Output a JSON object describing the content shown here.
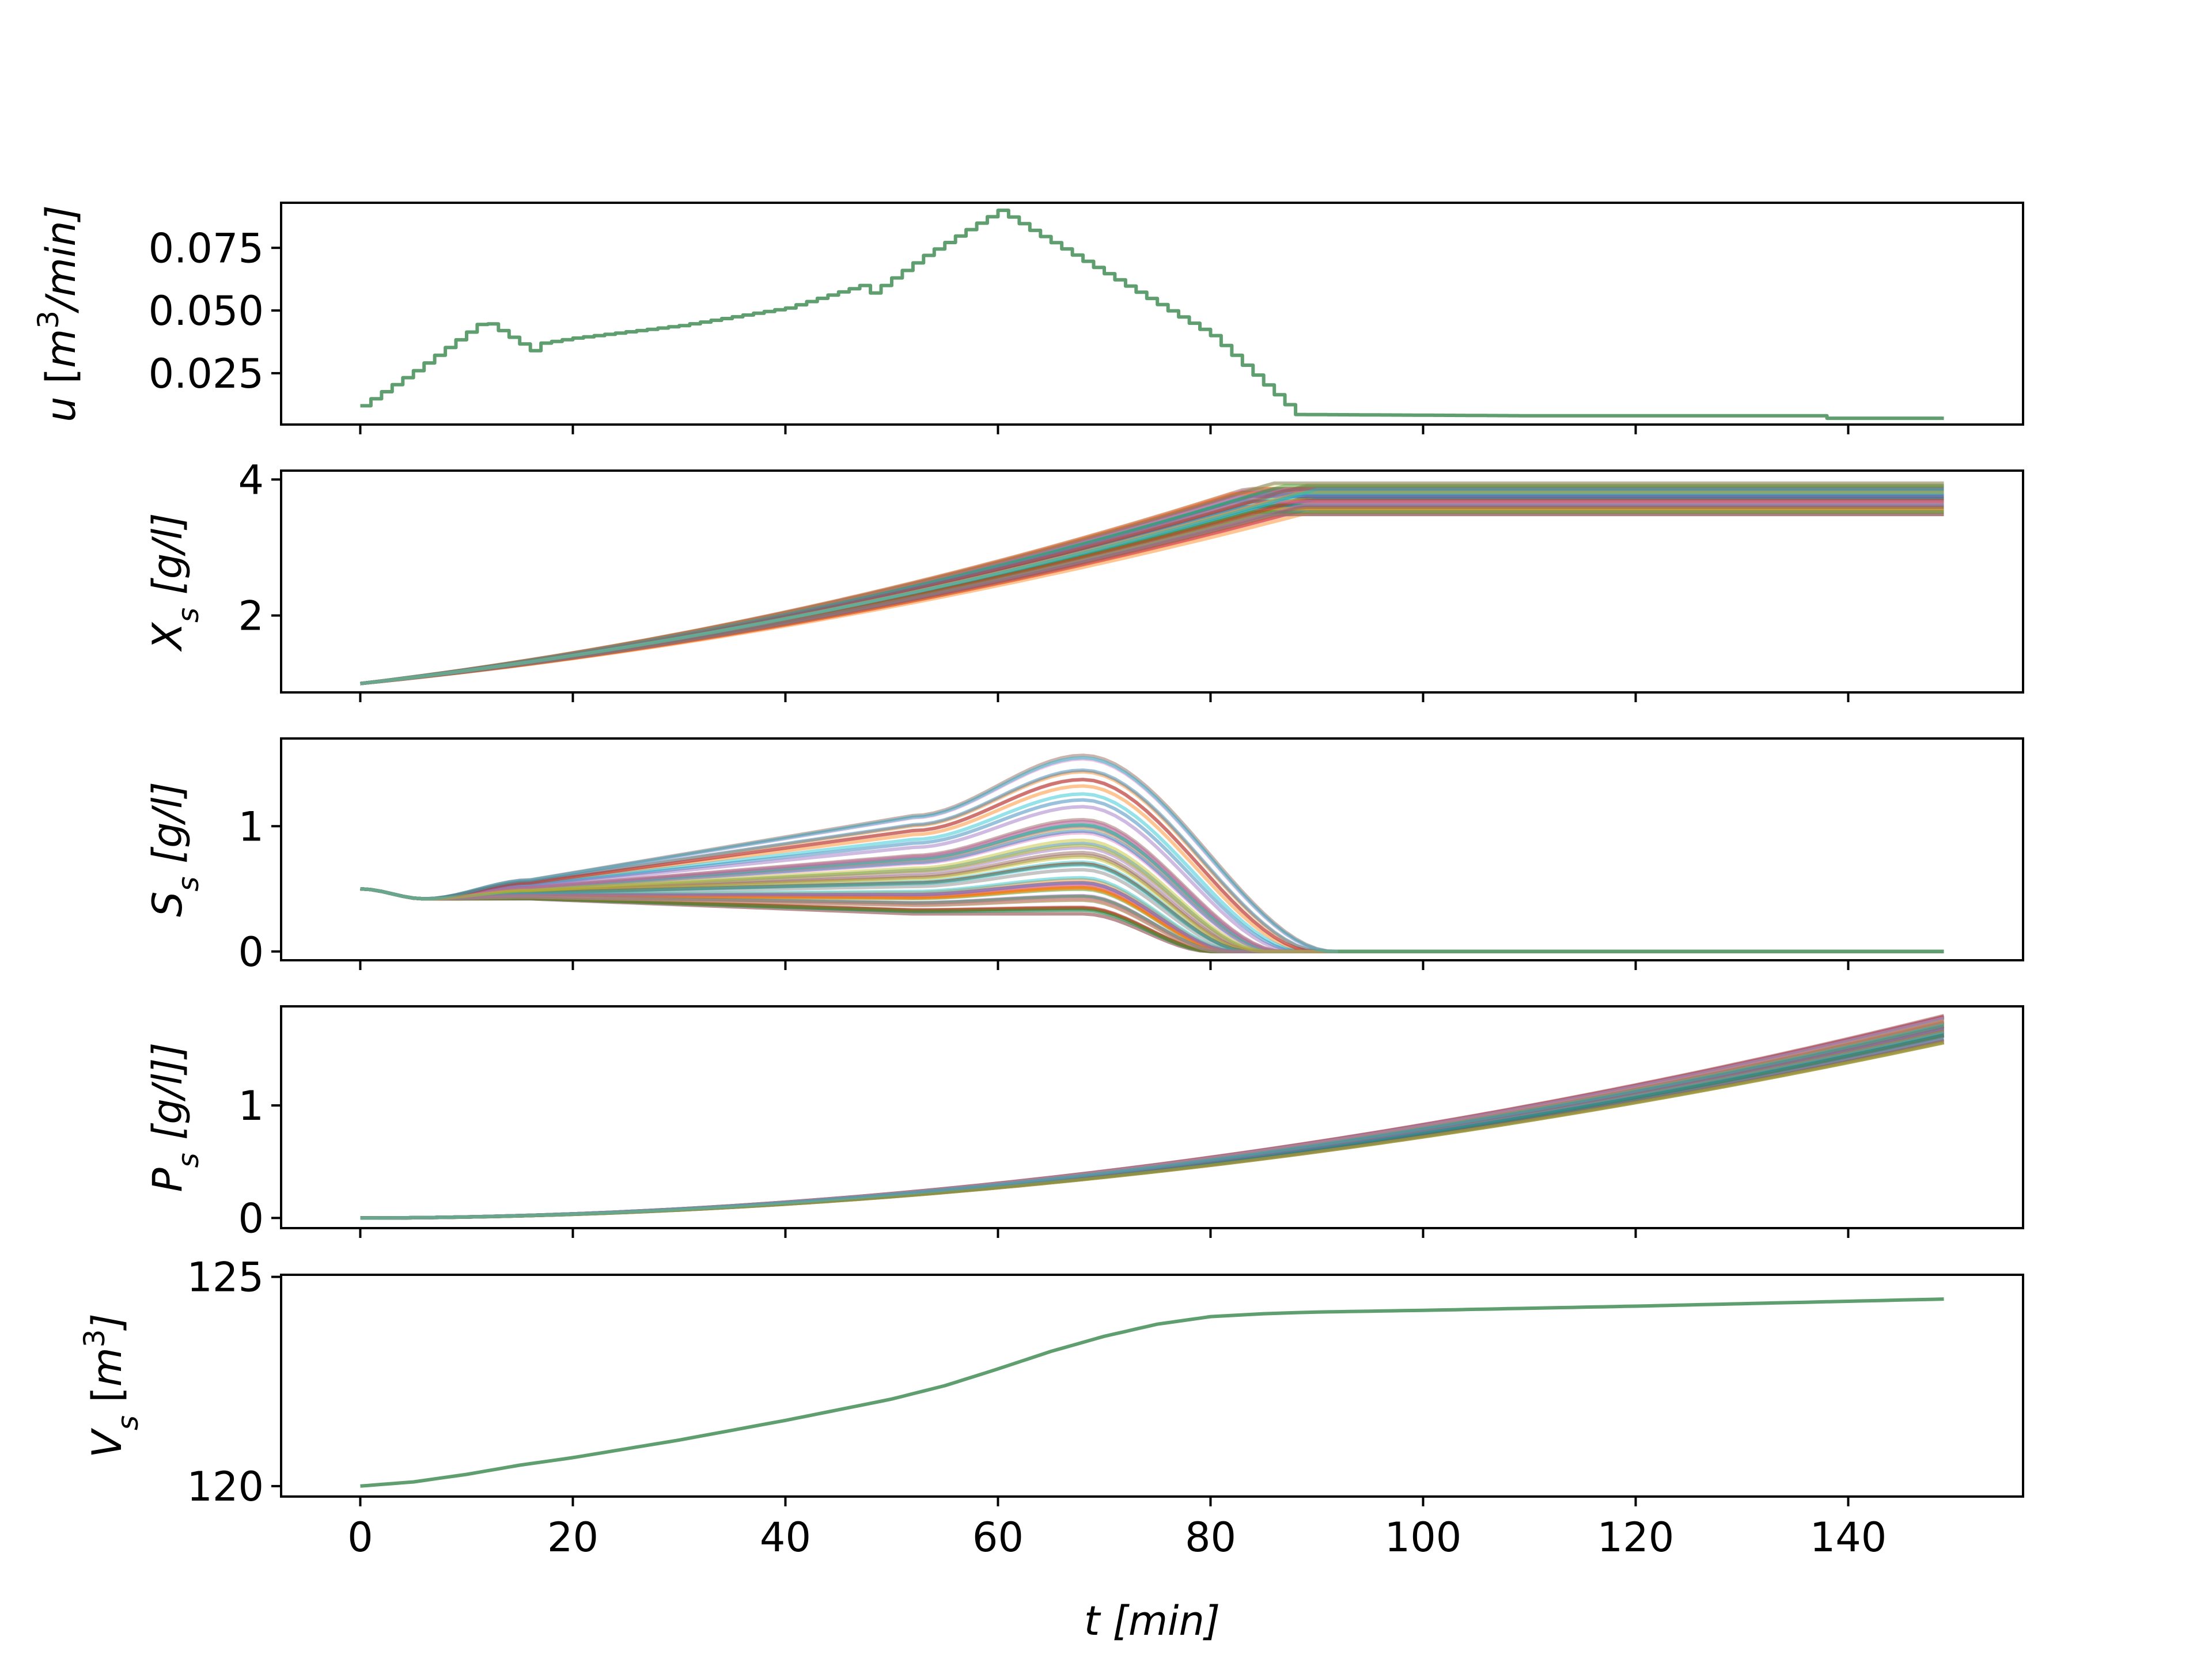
{
  "chart_data": {
    "type": "line",
    "xlabel": "t [min]",
    "xlim": [
      -7.45,
      156.45
    ],
    "xticks": [
      0,
      20,
      40,
      60,
      80,
      100,
      120,
      140
    ],
    "xtick_labels": [
      "0",
      "20",
      "40",
      "60",
      "80",
      "100",
      "120",
      "140"
    ],
    "ensemble_description_colors": [
      "#1f77b4",
      "#ff7f0e",
      "#2ca02c",
      "#d62728",
      "#9467bd",
      "#8c564b",
      "#e377c2",
      "#7f7f7f",
      "#bcbd22",
      "#17becf"
    ],
    "panels": [
      {
        "id": "u",
        "ylabel": "u [m3/min]",
        "ylabel_parts": {
          "var": "u",
          "open": " [",
          "unit": "m",
          "sup": "3",
          "rest": "/min]"
        },
        "ylim": [
          0.0045,
          0.093
        ],
        "yticks": [
          0.025,
          0.05,
          0.075
        ],
        "ytick_labels": [
          "0.025",
          "0.050",
          "0.075"
        ],
        "step": true,
        "series": [
          {
            "color": "#5f9e6e",
            "points": [
              [
                0,
                0.012
              ],
              [
                5,
                0.026
              ],
              [
                11.5,
                0.046
              ],
              [
                16,
                0.034
              ],
              [
                17,
                0.037
              ],
              [
                20,
                0.039
              ],
              [
                30,
                0.044
              ],
              [
                40,
                0.051
              ],
              [
                47,
                0.06
              ],
              [
                48,
                0.057
              ],
              [
                53,
                0.072
              ],
              [
                60,
                0.09
              ],
              [
                63,
                0.082
              ],
              [
                80,
                0.04
              ],
              [
                88,
                0.0085
              ],
              [
                110,
                0.008
              ],
              [
                137,
                0.008
              ],
              [
                138,
                0.007
              ],
              [
                149,
                0.007
              ]
            ]
          }
        ]
      },
      {
        "id": "X",
        "ylabel": "Xs [g/l]",
        "ylabel_parts": {
          "var": "X",
          "sub": "s",
          "rest": " [g/l]"
        },
        "ylim": [
          0.87,
          4.13
        ],
        "yticks": [
          2,
          4
        ],
        "ytick_labels": [
          "2",
          "4"
        ],
        "ensemble": {
          "count": 60,
          "model": "X",
          "start": 1.0,
          "plateau_t": [
            82,
            90
          ],
          "plateau_range": [
            3.48,
            3.95
          ]
        }
      },
      {
        "id": "S",
        "ylabel": "Ss [g/l]",
        "ylabel_parts": {
          "var": "S",
          "sub": "s",
          "rest": " [g/l]"
        },
        "ylim": [
          -0.07,
          1.7
        ],
        "yticks": [
          0,
          1
        ],
        "ytick_labels": [
          "0",
          "1"
        ],
        "ensemble": {
          "count": 60,
          "model": "S",
          "start": 0.5,
          "peak_range": [
            0.3,
            1.6
          ],
          "zero_t_range": [
            80,
            92
          ]
        }
      },
      {
        "id": "P",
        "ylabel": "Ps [g/l]]",
        "ylabel_parts": {
          "var": "P",
          "sub": "s",
          "rest": " [g/l]]"
        },
        "ylim": [
          -0.09,
          1.88
        ],
        "yticks": [
          0,
          1
        ],
        "ytick_labels": [
          "0",
          "1"
        ],
        "ensemble": {
          "count": 60,
          "model": "P",
          "start": 0.0,
          "end_range": [
            1.55,
            1.8
          ]
        }
      },
      {
        "id": "V",
        "ylabel": "Vs [m3]",
        "ylabel_parts": {
          "var": "V",
          "sub": "s",
          "open": " [",
          "unit": "m",
          "sup": "3",
          "rest": "]"
        },
        "ylim": [
          119.75,
          125.05
        ],
        "yticks": [
          120,
          125
        ],
        "ytick_labels": [
          "120",
          "125"
        ],
        "series": [
          {
            "color": "#5f9e6e",
            "points": [
              [
                0,
                120.0
              ],
              [
                5,
                120.1
              ],
              [
                10,
                120.28
              ],
              [
                15,
                120.5
              ],
              [
                20,
                120.68
              ],
              [
                30,
                121.1
              ],
              [
                40,
                121.57
              ],
              [
                50,
                122.08
              ],
              [
                55,
                122.4
              ],
              [
                60,
                122.8
              ],
              [
                65,
                123.22
              ],
              [
                70,
                123.58
              ],
              [
                75,
                123.87
              ],
              [
                80,
                124.05
              ],
              [
                85,
                124.12
              ],
              [
                90,
                124.16
              ],
              [
                100,
                124.2
              ],
              [
                120,
                124.3
              ],
              [
                149,
                124.47
              ]
            ]
          }
        ]
      }
    ]
  }
}
